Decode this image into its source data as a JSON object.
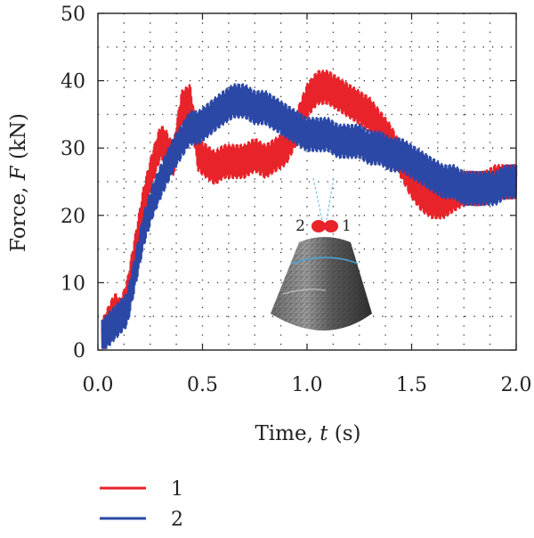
{
  "chart_data": {
    "type": "line",
    "title": "",
    "xlabel": "Time, t (s)",
    "xlabel_parts": [
      "Time, ",
      "t",
      " (s)"
    ],
    "ylabel": "Force, F (kN)",
    "ylabel_parts": [
      "Force, ",
      "F",
      " (kN)"
    ],
    "xlim": [
      0.0,
      2.0
    ],
    "ylim": [
      0,
      50
    ],
    "xticks": [
      0.0,
      0.5,
      1.0,
      1.5,
      2.0
    ],
    "xtick_labels": [
      "0.0",
      "0.5",
      "1.0",
      "1.5",
      "2.0"
    ],
    "yticks": [
      0,
      10,
      20,
      30,
      40,
      50
    ],
    "ytick_labels": [
      "0",
      "10",
      "20",
      "30",
      "40",
      "50"
    ],
    "grid": true,
    "legend_position": "bottom-left",
    "annotations": [
      "2",
      "1"
    ],
    "series": [
      {
        "name": "1",
        "color": "#e8232a",
        "x": [
          0.02,
          0.05,
          0.08,
          0.11,
          0.14,
          0.18,
          0.22,
          0.26,
          0.3,
          0.33,
          0.36,
          0.4,
          0.44,
          0.48,
          0.52,
          0.56,
          0.6,
          0.65,
          0.7,
          0.75,
          0.8,
          0.85,
          0.9,
          0.95,
          1.0,
          1.05,
          1.1,
          1.15,
          1.2,
          1.25,
          1.3,
          1.35,
          1.4,
          1.45,
          1.5,
          1.55,
          1.6,
          1.65,
          1.7,
          1.75,
          1.8,
          1.85,
          1.9,
          1.95,
          2.0
        ],
        "values": [
          2,
          4,
          6,
          5,
          8,
          15,
          22,
          27,
          31,
          30,
          28,
          36,
          37,
          29,
          28,
          27,
          28,
          28,
          28,
          29,
          28,
          29,
          30,
          33,
          37,
          39,
          39,
          38,
          37,
          36,
          35,
          33,
          31,
          28,
          25,
          23,
          22,
          22,
          23,
          24,
          24,
          24,
          25,
          25,
          25
        ]
      },
      {
        "name": "2",
        "color": "#2b48a6",
        "x": [
          0.02,
          0.05,
          0.08,
          0.11,
          0.14,
          0.18,
          0.22,
          0.26,
          0.3,
          0.33,
          0.36,
          0.4,
          0.44,
          0.48,
          0.52,
          0.56,
          0.6,
          0.65,
          0.7,
          0.75,
          0.8,
          0.85,
          0.9,
          0.95,
          1.0,
          1.05,
          1.1,
          1.15,
          1.2,
          1.25,
          1.3,
          1.35,
          1.4,
          1.45,
          1.5,
          1.55,
          1.6,
          1.65,
          1.7,
          1.75,
          1.8,
          1.85,
          1.9,
          1.95,
          2.0
        ],
        "values": [
          2,
          3,
          4,
          5,
          6,
          12,
          18,
          22,
          25,
          27,
          29,
          31,
          33,
          33,
          34,
          35,
          36,
          37,
          37,
          36,
          36,
          35,
          34,
          33,
          32,
          32,
          32,
          31,
          31,
          31,
          30,
          30,
          29,
          29,
          28,
          27,
          26,
          25,
          25,
          24,
          24,
          24,
          24,
          25,
          25
        ]
      }
    ],
    "noise_amplitude": [
      2.5,
      2.5
    ]
  }
}
